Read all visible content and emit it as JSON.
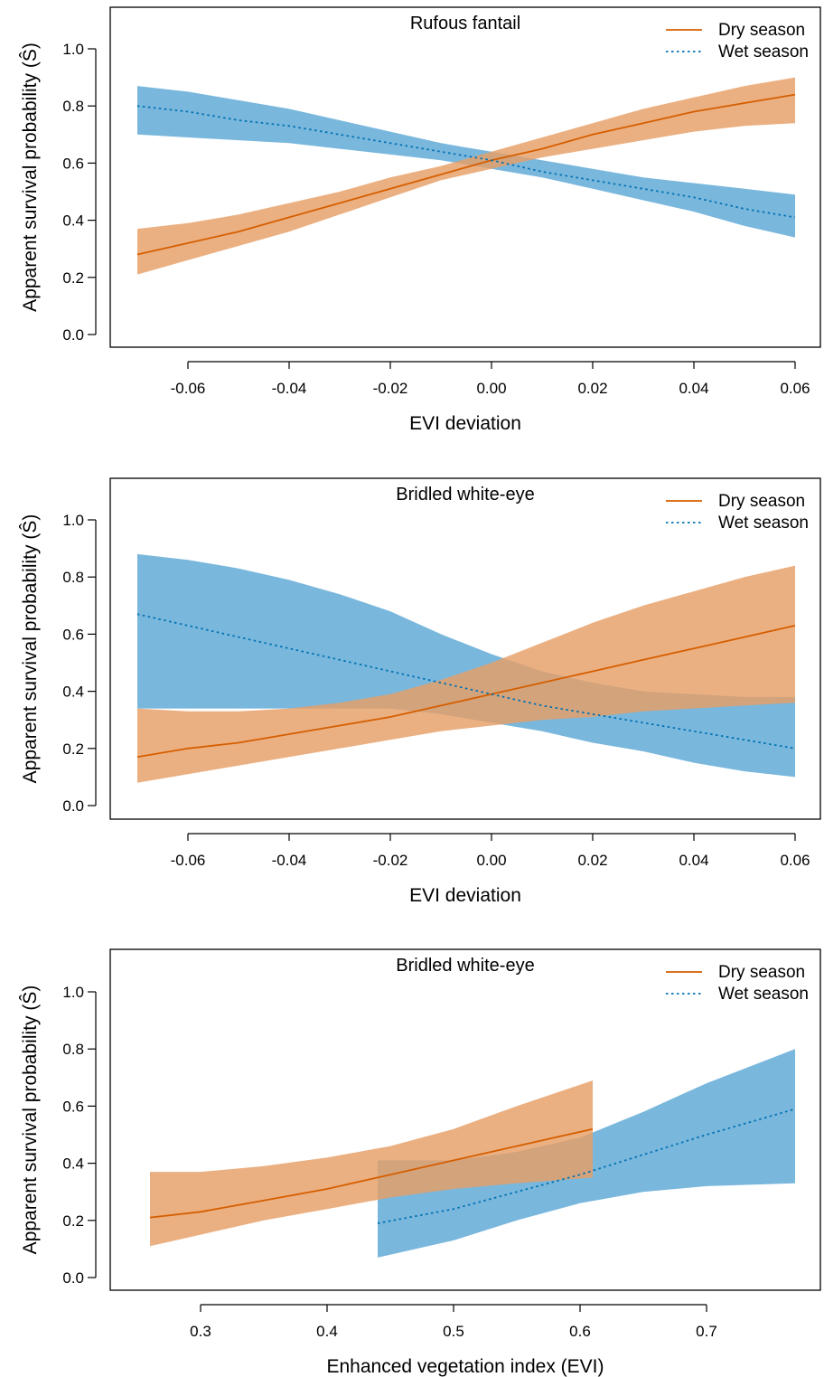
{
  "colors": {
    "dry_line": "#D55E00",
    "wet_line": "#0072B2",
    "dry_band": "#E69F66",
    "wet_band": "#5BA7D6"
  },
  "chart_data": [
    {
      "type": "line",
      "title": "Rufous fantail",
      "xlabel": "EVI deviation",
      "ylabel": "Apparent survival probability (Ŝ)",
      "xlim": [
        -0.07,
        0.06
      ],
      "ylim": [
        0.0,
        1.0
      ],
      "x_ticks": [
        -0.06,
        -0.04,
        -0.02,
        0.0,
        0.02,
        0.04,
        0.06
      ],
      "x_tick_labels": [
        "-0.06",
        "-0.04",
        "-0.02",
        "0.00",
        "0.02",
        "0.04",
        "0.06"
      ],
      "y_ticks": [
        0.0,
        0.2,
        0.4,
        0.6,
        0.8,
        1.0
      ],
      "y_tick_labels": [
        "0.0",
        "0.2",
        "0.4",
        "0.6",
        "0.8",
        "1.0"
      ],
      "legend_position": "top-right",
      "series": [
        {
          "name": "Dry season",
          "line_style": "solid",
          "x": [
            -0.07,
            -0.06,
            -0.05,
            -0.04,
            -0.03,
            -0.02,
            -0.01,
            0.0,
            0.01,
            0.02,
            0.03,
            0.04,
            0.05,
            0.06
          ],
          "values": [
            0.28,
            0.32,
            0.36,
            0.41,
            0.46,
            0.51,
            0.56,
            0.61,
            0.65,
            0.7,
            0.74,
            0.78,
            0.81,
            0.84
          ],
          "lower": [
            0.21,
            0.26,
            0.31,
            0.36,
            0.42,
            0.48,
            0.54,
            0.58,
            0.62,
            0.65,
            0.68,
            0.71,
            0.73,
            0.74
          ],
          "upper": [
            0.37,
            0.39,
            0.42,
            0.46,
            0.5,
            0.55,
            0.59,
            0.64,
            0.69,
            0.74,
            0.79,
            0.83,
            0.87,
            0.9
          ]
        },
        {
          "name": "Wet season",
          "line_style": "dotted",
          "x": [
            -0.07,
            -0.06,
            -0.05,
            -0.04,
            -0.03,
            -0.02,
            -0.01,
            0.0,
            0.01,
            0.02,
            0.03,
            0.04,
            0.05,
            0.06
          ],
          "values": [
            0.8,
            0.78,
            0.75,
            0.73,
            0.7,
            0.67,
            0.64,
            0.61,
            0.57,
            0.54,
            0.51,
            0.48,
            0.44,
            0.41
          ],
          "lower": [
            0.7,
            0.69,
            0.68,
            0.67,
            0.65,
            0.63,
            0.61,
            0.58,
            0.55,
            0.51,
            0.47,
            0.43,
            0.38,
            0.34
          ],
          "upper": [
            0.87,
            0.85,
            0.82,
            0.79,
            0.75,
            0.71,
            0.67,
            0.64,
            0.61,
            0.58,
            0.55,
            0.53,
            0.51,
            0.49
          ]
        }
      ]
    },
    {
      "type": "line",
      "title": "Bridled white-eye",
      "xlabel": "EVI deviation",
      "ylabel": "Apparent survival probability (Ŝ)",
      "xlim": [
        -0.07,
        0.06
      ],
      "ylim": [
        0.0,
        1.0
      ],
      "x_ticks": [
        -0.06,
        -0.04,
        -0.02,
        0.0,
        0.02,
        0.04,
        0.06
      ],
      "x_tick_labels": [
        "-0.06",
        "-0.04",
        "-0.02",
        "0.00",
        "0.02",
        "0.04",
        "0.06"
      ],
      "y_ticks": [
        0.0,
        0.2,
        0.4,
        0.6,
        0.8,
        1.0
      ],
      "y_tick_labels": [
        "0.0",
        "0.2",
        "0.4",
        "0.6",
        "0.8",
        "1.0"
      ],
      "legend_position": "top-right",
      "series": [
        {
          "name": "Dry season",
          "line_style": "solid",
          "x": [
            -0.07,
            -0.06,
            -0.05,
            -0.04,
            -0.03,
            -0.02,
            -0.01,
            0.0,
            0.01,
            0.02,
            0.03,
            0.04,
            0.05,
            0.06
          ],
          "values": [
            0.17,
            0.2,
            0.22,
            0.25,
            0.28,
            0.31,
            0.35,
            0.39,
            0.43,
            0.47,
            0.51,
            0.55,
            0.59,
            0.63
          ],
          "lower": [
            0.08,
            0.11,
            0.14,
            0.17,
            0.2,
            0.23,
            0.26,
            0.28,
            0.3,
            0.31,
            0.33,
            0.34,
            0.35,
            0.36
          ],
          "upper": [
            0.34,
            0.33,
            0.33,
            0.34,
            0.36,
            0.39,
            0.44,
            0.5,
            0.57,
            0.64,
            0.7,
            0.75,
            0.8,
            0.84
          ]
        },
        {
          "name": "Wet season",
          "line_style": "dotted",
          "x": [
            -0.07,
            -0.06,
            -0.05,
            -0.04,
            -0.03,
            -0.02,
            -0.01,
            0.0,
            0.01,
            0.02,
            0.03,
            0.04,
            0.05,
            0.06
          ],
          "values": [
            0.67,
            0.63,
            0.59,
            0.55,
            0.51,
            0.47,
            0.43,
            0.39,
            0.35,
            0.32,
            0.29,
            0.26,
            0.23,
            0.2
          ],
          "lower": [
            0.34,
            0.34,
            0.34,
            0.34,
            0.34,
            0.34,
            0.32,
            0.29,
            0.26,
            0.22,
            0.19,
            0.15,
            0.12,
            0.1
          ],
          "upper": [
            0.88,
            0.86,
            0.83,
            0.79,
            0.74,
            0.68,
            0.6,
            0.53,
            0.47,
            0.43,
            0.4,
            0.39,
            0.38,
            0.38
          ]
        }
      ]
    },
    {
      "type": "line",
      "title": "Bridled white-eye",
      "xlabel": "Enhanced vegetation index (EVI)",
      "ylabel": "Apparent survival probability (Ŝ)",
      "xlim": [
        0.26,
        0.77
      ],
      "ylim": [
        0.0,
        1.0
      ],
      "x_ticks": [
        0.3,
        0.4,
        0.5,
        0.6,
        0.7
      ],
      "x_tick_labels": [
        "0.3",
        "0.4",
        "0.5",
        "0.6",
        "0.7"
      ],
      "y_ticks": [
        0.0,
        0.2,
        0.4,
        0.6,
        0.8,
        1.0
      ],
      "y_tick_labels": [
        "0.0",
        "0.2",
        "0.4",
        "0.6",
        "0.8",
        "1.0"
      ],
      "legend_position": "top-right",
      "series": [
        {
          "name": "Dry season",
          "line_style": "solid",
          "x": [
            0.26,
            0.3,
            0.35,
            0.4,
            0.45,
            0.5,
            0.55,
            0.61
          ],
          "values": [
            0.21,
            0.23,
            0.27,
            0.31,
            0.36,
            0.41,
            0.46,
            0.52
          ],
          "lower": [
            0.11,
            0.15,
            0.2,
            0.24,
            0.28,
            0.31,
            0.33,
            0.35
          ],
          "upper": [
            0.37,
            0.37,
            0.39,
            0.42,
            0.46,
            0.52,
            0.6,
            0.69
          ]
        },
        {
          "name": "Wet season",
          "line_style": "dotted",
          "x": [
            0.44,
            0.5,
            0.55,
            0.6,
            0.65,
            0.7,
            0.77
          ],
          "values": [
            0.19,
            0.24,
            0.3,
            0.36,
            0.43,
            0.5,
            0.59
          ],
          "lower": [
            0.07,
            0.13,
            0.2,
            0.26,
            0.3,
            0.32,
            0.33
          ],
          "upper": [
            0.41,
            0.41,
            0.44,
            0.49,
            0.58,
            0.68,
            0.8
          ]
        }
      ]
    }
  ]
}
